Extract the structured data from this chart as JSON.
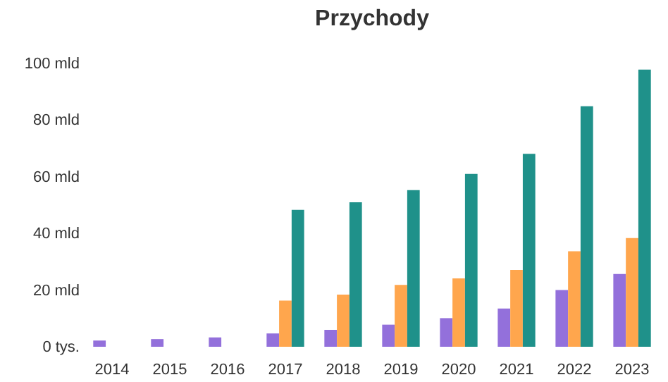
{
  "chart_data": {
    "type": "bar",
    "title": "Przychody",
    "categories": [
      "2014",
      "2015",
      "2016",
      "2017",
      "2018",
      "2019",
      "2020",
      "2021",
      "2022",
      "2023"
    ],
    "series": [
      {
        "color": "#9370db",
        "values": [
          2.2,
          2.7,
          3.3,
          4.7,
          6,
          7.8,
          10.1,
          13.5,
          20,
          25.7
        ]
      },
      {
        "color": "#ffa64d",
        "values": [
          null,
          null,
          null,
          16.3,
          18.4,
          21.8,
          24.1,
          27.1,
          33.7,
          38.4
        ]
      },
      {
        "color": "#1f918a",
        "values": [
          null,
          null,
          null,
          48.3,
          51,
          55.3,
          61,
          68.1,
          84.9,
          97.8
        ]
      }
    ],
    "ylim": [
      0,
      100
    ],
    "yticks": [
      {
        "value": 0,
        "label": "0 tys."
      },
      {
        "value": 20,
        "label": "20 mld"
      },
      {
        "value": 40,
        "label": "40 mld"
      },
      {
        "value": 60,
        "label": "60 mld"
      },
      {
        "value": 80,
        "label": "80 mld"
      },
      {
        "value": 100,
        "label": "100 mld"
      }
    ],
    "grid": false,
    "legend": false
  }
}
